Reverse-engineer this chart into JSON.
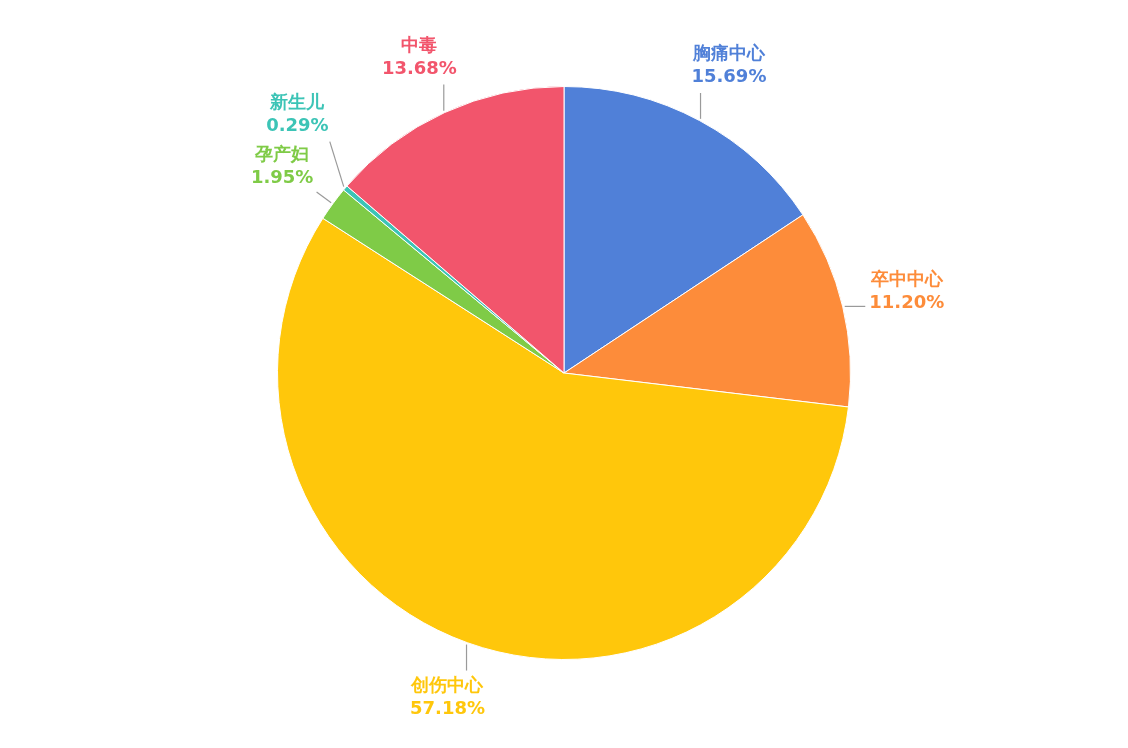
{
  "chart_data": {
    "type": "pie",
    "categories": [
      "胸痛中心",
      "卒中中心",
      "创伤中心",
      "孕产妇",
      "新生儿",
      "中毒"
    ],
    "values": [
      15.69,
      11.2,
      57.18,
      1.95,
      0.29,
      13.68
    ],
    "value_labels": [
      "15.69%",
      "11.20%",
      "57.18%",
      "1.95%",
      "0.29%",
      "13.68%"
    ],
    "colors": [
      "#5080d8",
      "#fd8c3a",
      "#ffc70b",
      "#7fcb47",
      "#3cc4b6",
      "#f2556c"
    ]
  }
}
